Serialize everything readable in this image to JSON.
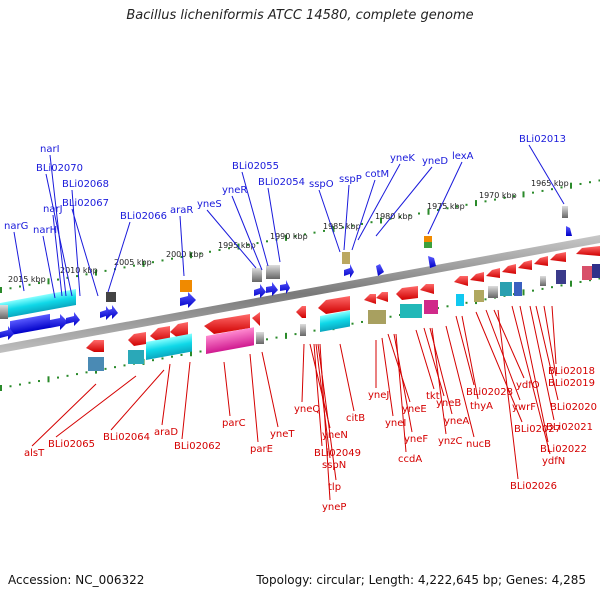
{
  "title": "Bacillus licheniformis ATCC 14580, complete genome",
  "accession": "Accession: NC_006322",
  "topology": "Topology: circular; Length: 4,222,645 bp; Genes: 4,285",
  "ruler": [
    "2015 kbp",
    "2010 kbp",
    "2005 kbp",
    "2000 kbp",
    "1995 kbp",
    "1990 kbp",
    "1985 kbp",
    "1980 kbp",
    "1975 kbp",
    "1970 kbp",
    "1965 kbp"
  ],
  "genes_forward": [
    "narG",
    "narH",
    "narJ",
    "narI",
    "BLi02070",
    "BLi02068",
    "BLi02067",
    "BLi02066",
    "araR",
    "yneS",
    "yneR",
    "BLi02055",
    "BLi02054",
    "sspO",
    "sspP",
    "cotM",
    "yneK",
    "yneD",
    "lexA",
    "BLi02013"
  ],
  "genes_reverse": [
    "alsT",
    "BLi02065",
    "BLi02064",
    "araD",
    "BLi02062",
    "parC",
    "parE",
    "yneT",
    "yneQ",
    "yneN",
    "BLi02049",
    "sspN",
    "tlp",
    "yneP",
    "citB",
    "yneJ",
    "yneI",
    "yneE",
    "yneF",
    "ccdA",
    "tkt",
    "yneB",
    "yneA",
    "ynzC",
    "nucB",
    "BLi02028",
    "thyA",
    "BLi02027",
    "ywrF",
    "ydfO",
    "BLi02026",
    "ydfN",
    "BLi02022",
    "BLi02021",
    "BLi02020",
    "BLi02019",
    "BLi02018"
  ],
  "colors": {
    "forward": "#1a1adb",
    "reverse": "#d40000",
    "tick": "#2a8a2a"
  }
}
